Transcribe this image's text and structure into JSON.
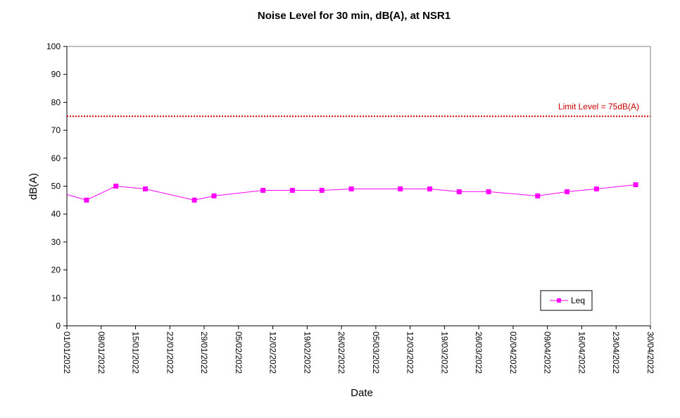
{
  "chart_data": {
    "type": "line",
    "title": "Noise Level for 30 min, dB(A), at NSR1",
    "xlabel": "Date",
    "ylabel": "dB(A)",
    "ylim": [
      0,
      100
    ],
    "yticks": [
      "0",
      "10",
      "20",
      "30",
      "40",
      "50",
      "60",
      "70",
      "80",
      "90",
      "100"
    ],
    "xlim": [
      "01/01/2022",
      "30/04/2022"
    ],
    "xticks": [
      "01/01/2022",
      "08/01/2022",
      "15/01/2022",
      "22/01/2022",
      "29/01/2022",
      "05/02/2022",
      "12/02/2022",
      "19/02/2022",
      "26/02/2022",
      "05/03/2022",
      "12/03/2022",
      "19/03/2022",
      "26/03/2022",
      "02/04/2022",
      "09/04/2022",
      "16/04/2022",
      "23/04/2022",
      "30/04/2022"
    ],
    "grid": false,
    "legend_position": "bottom-right",
    "series": [
      {
        "name": "Leq",
        "color": "#ff00ff",
        "marker": "square",
        "points": [
          {
            "x": "05/01/2022",
            "y": 45
          },
          {
            "x": "11/01/2022",
            "y": 50
          },
          {
            "x": "17/01/2022",
            "y": 49
          },
          {
            "x": "27/01/2022",
            "y": 45
          },
          {
            "x": "31/01/2022",
            "y": 46.5
          },
          {
            "x": "10/02/2022",
            "y": 48.5
          },
          {
            "x": "16/02/2022",
            "y": 48.5
          },
          {
            "x": "22/02/2022",
            "y": 48.5
          },
          {
            "x": "28/02/2022",
            "y": 49
          },
          {
            "x": "10/03/2022",
            "y": 49
          },
          {
            "x": "16/03/2022",
            "y": 49
          },
          {
            "x": "22/03/2022",
            "y": 48
          },
          {
            "x": "28/03/2022",
            "y": 48
          },
          {
            "x": "07/04/2022",
            "y": 46.5
          },
          {
            "x": "13/04/2022",
            "y": 48
          },
          {
            "x": "19/04/2022",
            "y": 49
          },
          {
            "x": "27/04/2022",
            "y": 50.5
          }
        ],
        "line_start_y": 47
      }
    ],
    "reference_line": {
      "label": "Limit Level  = 75dB(A)",
      "y": 75,
      "color": "#cc0000",
      "style": "dotted"
    }
  }
}
